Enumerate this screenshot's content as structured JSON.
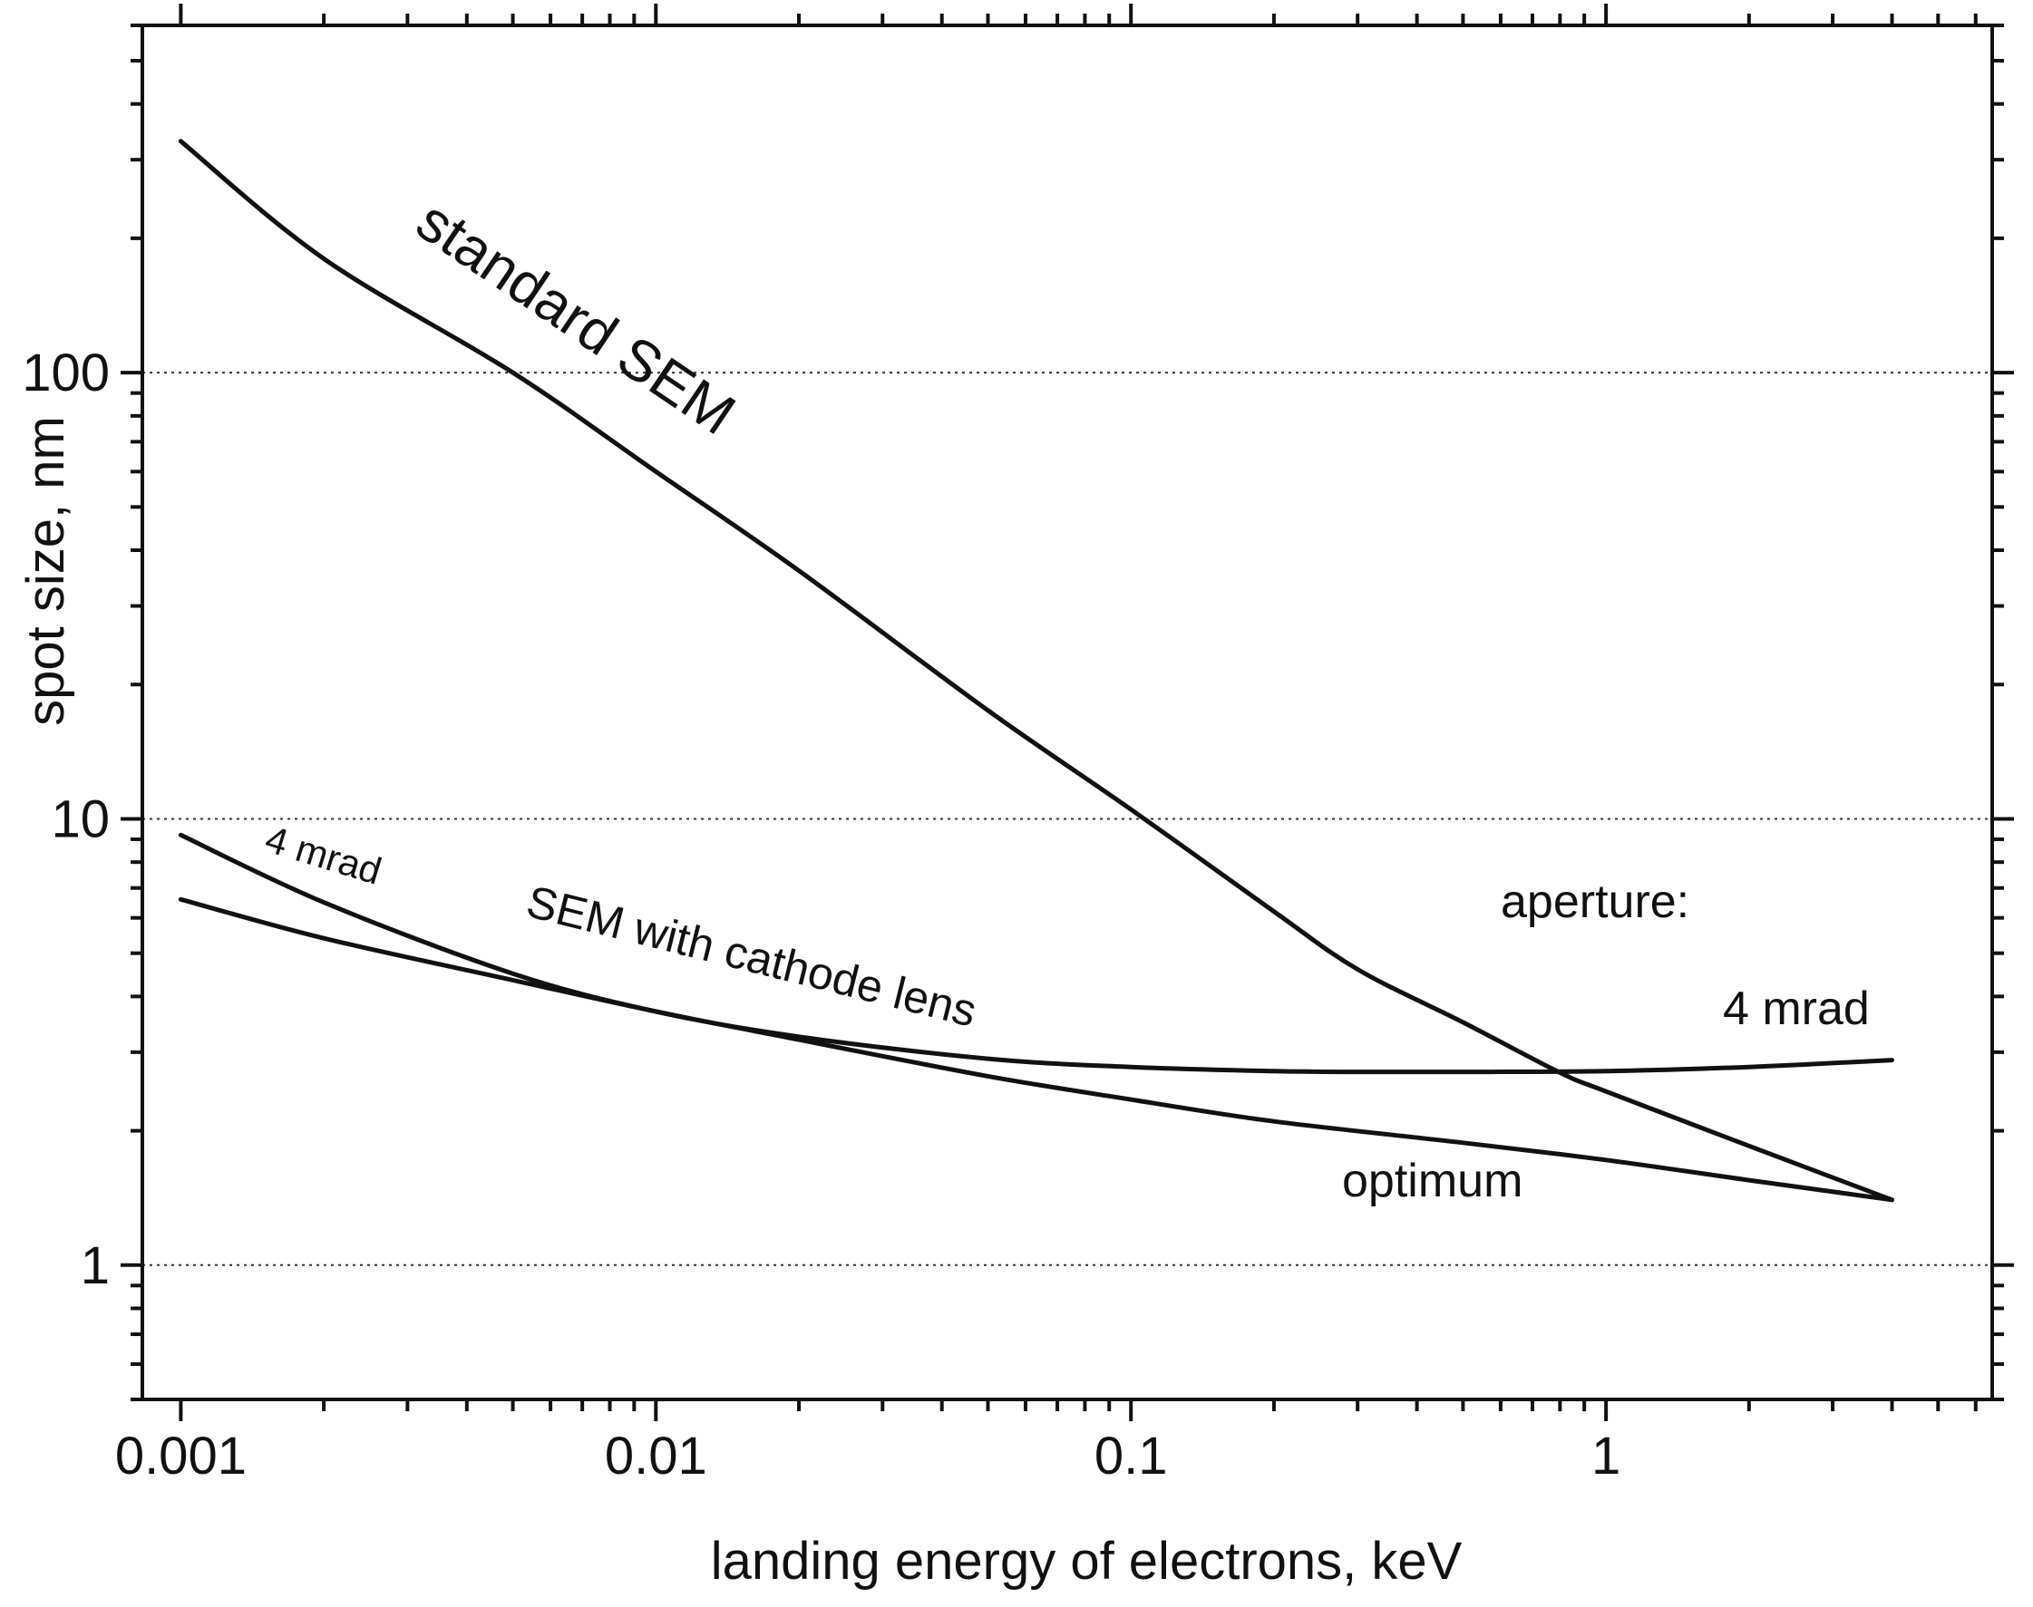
{
  "chart_data": {
    "type": "line",
    "xscale": "log",
    "yscale": "log",
    "xlabel": "landing energy of electrons, keV",
    "ylabel": "spot size, nm",
    "xlim": [
      0.00083,
      6.5
    ],
    "ylim": [
      0.5,
      600
    ],
    "xticks": [
      {
        "value": 0.001,
        "label": "0.001"
      },
      {
        "value": 0.01,
        "label": "0.01"
      },
      {
        "value": 0.1,
        "label": "0.1"
      },
      {
        "value": 1,
        "label": "1"
      }
    ],
    "yticks": [
      {
        "value": 1,
        "label": "1"
      },
      {
        "value": 10,
        "label": "10"
      },
      {
        "value": 100,
        "label": "100"
      }
    ],
    "grid_y": [
      1,
      10,
      100
    ],
    "series": [
      {
        "name": "standard SEM",
        "x": [
          0.001,
          0.002,
          0.005,
          0.01,
          0.02,
          0.05,
          0.1,
          0.2,
          0.3,
          0.5,
          0.8,
          1,
          2,
          4
        ],
        "y": [
          330,
          180,
          100,
          60,
          36,
          17.5,
          10.5,
          6.2,
          4.6,
          3.5,
          2.7,
          2.45,
          1.85,
          1.4
        ]
      },
      {
        "name": "4 mrad",
        "x": [
          0.001,
          0.002,
          0.005,
          0.01,
          0.02,
          0.05,
          0.1,
          0.2,
          0.3,
          0.5,
          1,
          2,
          4
        ],
        "y": [
          9.2,
          6.5,
          4.5,
          3.7,
          3.25,
          2.9,
          2.78,
          2.72,
          2.71,
          2.71,
          2.72,
          2.78,
          2.88
        ]
      },
      {
        "name": "optimum",
        "x": [
          0.001,
          0.002,
          0.005,
          0.01,
          0.02,
          0.05,
          0.1,
          0.2,
          0.5,
          1,
          2,
          4
        ],
        "y": [
          6.6,
          5.4,
          4.35,
          3.7,
          3.2,
          2.65,
          2.35,
          2.1,
          1.88,
          1.72,
          1.55,
          1.4
        ]
      }
    ],
    "annotations": {
      "standard_sem": "standard SEM",
      "mrad_small": "4 mrad",
      "cathode_lens": "SEM with cathode lens",
      "aperture": "aperture:",
      "mrad_right": "4 mrad",
      "optimum": "optimum"
    }
  }
}
